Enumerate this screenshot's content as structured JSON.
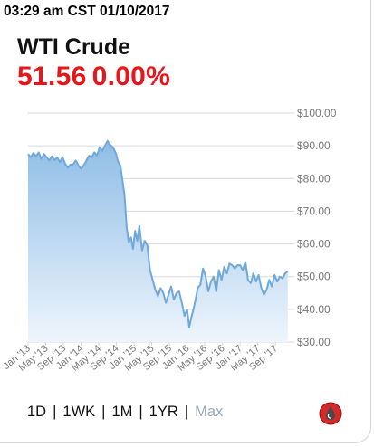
{
  "header": {
    "timestamp": "03:29 am CST 01/10/2017",
    "title": "WTI Crude",
    "price": "51.56",
    "change": "0.00%"
  },
  "ranges": {
    "items": [
      "1D",
      "1WK",
      "1M",
      "1YR",
      "Max"
    ],
    "selected": "Max",
    "separator": "|"
  },
  "brand_icon": "oil-drop-icon",
  "colors": {
    "price": "#e8161b",
    "line": "#6fa8dc",
    "fill_top": "#8fbde6",
    "fill_bottom": "#eef5fc",
    "grid": "#d9d9d9",
    "axis_text": "#777777",
    "inactive_range": "#9aa9b5"
  },
  "chart_data": {
    "type": "area",
    "x_tick_labels": [
      "Jan '13",
      "May '13",
      "Sep '13",
      "Jan '14",
      "May '14",
      "Sep '14",
      "Jan '15",
      "May '15",
      "Sep '15",
      "Jan '16",
      "May '16",
      "Sep '16",
      "Jan '17",
      "May '17",
      "Sep '17"
    ],
    "x_range": [
      2013.0,
      2017.92
    ],
    "ylim": [
      30,
      100
    ],
    "y_tick_labels": [
      "$100.00",
      "$90.00",
      "$80.00",
      "$70.00",
      "$60.00",
      "$50.00",
      "$40.00",
      "$30.00"
    ],
    "y_ticks": [
      100,
      90,
      80,
      70,
      60,
      50,
      40,
      30
    ],
    "grid": true,
    "x": [
      2013.0,
      2013.05,
      2013.1,
      2013.15,
      2013.2,
      2013.25,
      2013.3,
      2013.35,
      2013.4,
      2013.45,
      2013.5,
      2013.55,
      2013.6,
      2013.65,
      2013.7,
      2013.75,
      2013.8,
      2013.85,
      2013.9,
      2013.95,
      2014.0,
      2014.05,
      2014.1,
      2014.15,
      2014.2,
      2014.25,
      2014.3,
      2014.35,
      2014.4,
      2014.45,
      2014.5,
      2014.53,
      2014.57,
      2014.62,
      2014.66,
      2014.7,
      2014.74,
      2014.78,
      2014.82,
      2014.86,
      2014.9,
      2014.94,
      2014.98,
      2015.02,
      2015.06,
      2015.1,
      2015.15,
      2015.2,
      2015.25,
      2015.3,
      2015.35,
      2015.4,
      2015.45,
      2015.5,
      2015.55,
      2015.6,
      2015.65,
      2015.7,
      2015.75,
      2015.8,
      2015.85,
      2015.9,
      2015.95,
      2016.0,
      2016.04,
      2016.08,
      2016.12,
      2016.16,
      2016.2,
      2016.25,
      2016.3,
      2016.35,
      2016.4,
      2016.45,
      2016.5,
      2016.55,
      2016.6,
      2016.65,
      2016.7,
      2016.75,
      2016.8,
      2016.85,
      2016.9,
      2016.95,
      2017.0,
      2017.05,
      2017.1,
      2017.15,
      2017.2,
      2017.25,
      2017.3,
      2017.35,
      2017.4,
      2017.45,
      2017.5,
      2017.55,
      2017.6,
      2017.65,
      2017.7,
      2017.75,
      2017.8,
      2017.85,
      2017.9
    ],
    "y": [
      87.5,
      86.5,
      87.8,
      86.8,
      88.0,
      86.0,
      87.5,
      86.5,
      85.5,
      86.8,
      85.6,
      86.5,
      85.0,
      86.5,
      84.5,
      83.3,
      84.3,
      84.3,
      85.5,
      84.0,
      83.0,
      84.0,
      85.5,
      87.0,
      86.5,
      88.0,
      87.0,
      89.5,
      88.5,
      90.0,
      91.5,
      90.5,
      90.0,
      89.0,
      87.5,
      85.0,
      84.0,
      79.5,
      75.0,
      65.0,
      60.5,
      62.0,
      58.5,
      64.0,
      61.0,
      65.5,
      58.0,
      61.0,
      59.5,
      52.0,
      49.0,
      46.0,
      44.0,
      46.5,
      45.0,
      42.0,
      44.5,
      47.0,
      43.0,
      45.0,
      45.5,
      42.0,
      38.0,
      40.0,
      34.5,
      37.5,
      40.0,
      43.0,
      46.5,
      47.5,
      52.5,
      50.0,
      45.5,
      48.5,
      50.0,
      45.5,
      52.0,
      49.0,
      53.0,
      51.0,
      54.0,
      53.5,
      52.5,
      53.5,
      53.5,
      52.0,
      54.5,
      49.0,
      48.0,
      51.0,
      48.5,
      50.5,
      46.5,
      44.5,
      46.0,
      49.0,
      47.0,
      50.5,
      48.5,
      50.0,
      49.5,
      51.0,
      51.6
    ]
  }
}
